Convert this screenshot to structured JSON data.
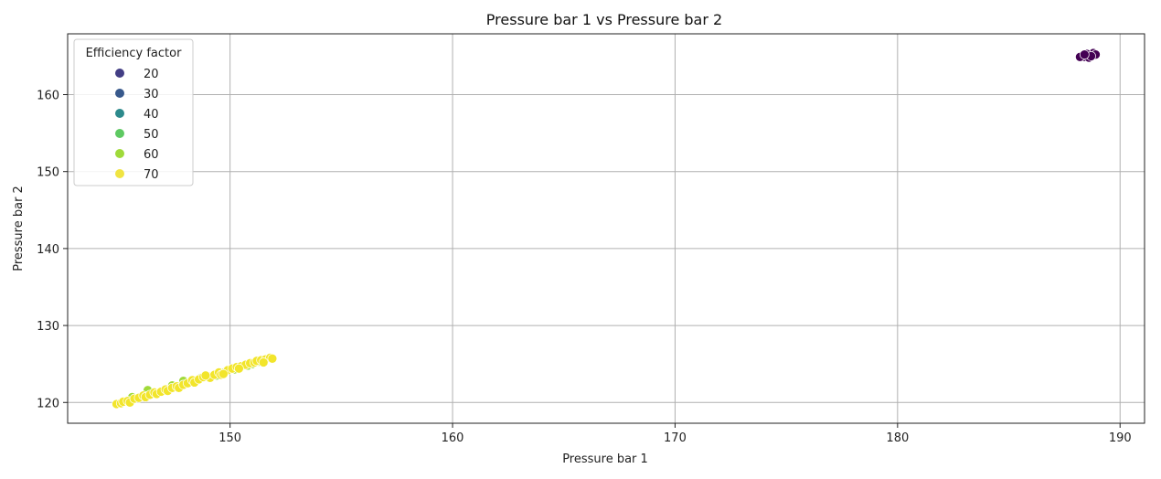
{
  "chart_data": {
    "type": "scatter",
    "title": "Pressure bar 1 vs Pressure bar 2",
    "xlabel": "Pressure bar 1",
    "ylabel": "Pressure bar 2",
    "xlim": [
      142.7,
      191.1
    ],
    "ylim": [
      117.3,
      167.9
    ],
    "xticks": [
      150,
      160,
      170,
      180,
      190
    ],
    "yticks": [
      120,
      130,
      140,
      150,
      160
    ],
    "grid": true,
    "legend": {
      "title": "Efficiency factor",
      "placement": "top-left",
      "entries": [
        {
          "label": "20",
          "color": "#433e85"
        },
        {
          "label": "30",
          "color": "#38598c"
        },
        {
          "label": "40",
          "color": "#2d8a8c"
        },
        {
          "label": "50",
          "color": "#5ec962"
        },
        {
          "label": "60",
          "color": "#9fda3a"
        },
        {
          "label": "70",
          "color": "#f0e442"
        }
      ]
    },
    "series": [
      {
        "color": "#440154",
        "points": [
          [
            188.3,
            165.0
          ],
          [
            188.5,
            165.2
          ],
          [
            188.7,
            165.3
          ],
          [
            188.4,
            164.9
          ],
          [
            188.6,
            165.1
          ],
          [
            188.8,
            165.4
          ],
          [
            188.9,
            165.2
          ],
          [
            188.2,
            164.9
          ],
          [
            188.6,
            164.8
          ],
          [
            188.5,
            165.3
          ],
          [
            188.7,
            165.0
          ],
          [
            188.4,
            165.2
          ]
        ]
      },
      {
        "color": "#a0da39",
        "points": [
          [
            146.3,
            121.6
          ],
          [
            147.4,
            122.2
          ],
          [
            148.2,
            122.7
          ],
          [
            148.7,
            123.2
          ],
          [
            149.4,
            123.5
          ],
          [
            150.2,
            124.3
          ],
          [
            150.8,
            124.8
          ],
          [
            151.3,
            125.3
          ],
          [
            145.6,
            120.7
          ],
          [
            147.9,
            122.8
          ],
          [
            149.8,
            124.0
          ],
          [
            151.0,
            125.0
          ]
        ]
      },
      {
        "color": "#f2e52b",
        "points": [
          [
            144.9,
            119.8
          ],
          [
            145.1,
            119.9
          ],
          [
            145.2,
            120.1
          ],
          [
            145.4,
            120.2
          ],
          [
            145.5,
            120.0
          ],
          [
            145.7,
            120.5
          ],
          [
            145.9,
            120.6
          ],
          [
            146.1,
            120.9
          ],
          [
            146.2,
            120.7
          ],
          [
            146.4,
            121.0
          ],
          [
            146.6,
            121.3
          ],
          [
            146.7,
            121.1
          ],
          [
            146.9,
            121.4
          ],
          [
            147.1,
            121.7
          ],
          [
            147.2,
            121.5
          ],
          [
            147.4,
            121.9
          ],
          [
            147.6,
            122.1
          ],
          [
            147.7,
            121.9
          ],
          [
            147.9,
            122.3
          ],
          [
            148.1,
            122.5
          ],
          [
            148.3,
            122.9
          ],
          [
            148.4,
            122.6
          ],
          [
            148.6,
            123.0
          ],
          [
            148.8,
            123.3
          ],
          [
            149.0,
            123.4
          ],
          [
            149.1,
            123.2
          ],
          [
            149.3,
            123.6
          ],
          [
            149.5,
            123.9
          ],
          [
            149.6,
            123.6
          ],
          [
            149.9,
            124.2
          ],
          [
            150.1,
            124.4
          ],
          [
            150.3,
            124.6
          ],
          [
            150.5,
            124.7
          ],
          [
            150.7,
            124.9
          ],
          [
            150.9,
            125.1
          ],
          [
            151.1,
            125.2
          ],
          [
            151.2,
            125.4
          ],
          [
            151.4,
            125.5
          ],
          [
            151.6,
            125.6
          ],
          [
            151.8,
            125.8
          ],
          [
            151.9,
            125.7
          ],
          [
            150.4,
            124.4
          ],
          [
            151.5,
            125.2
          ],
          [
            149.7,
            123.7
          ],
          [
            148.9,
            123.5
          ]
        ]
      }
    ]
  }
}
